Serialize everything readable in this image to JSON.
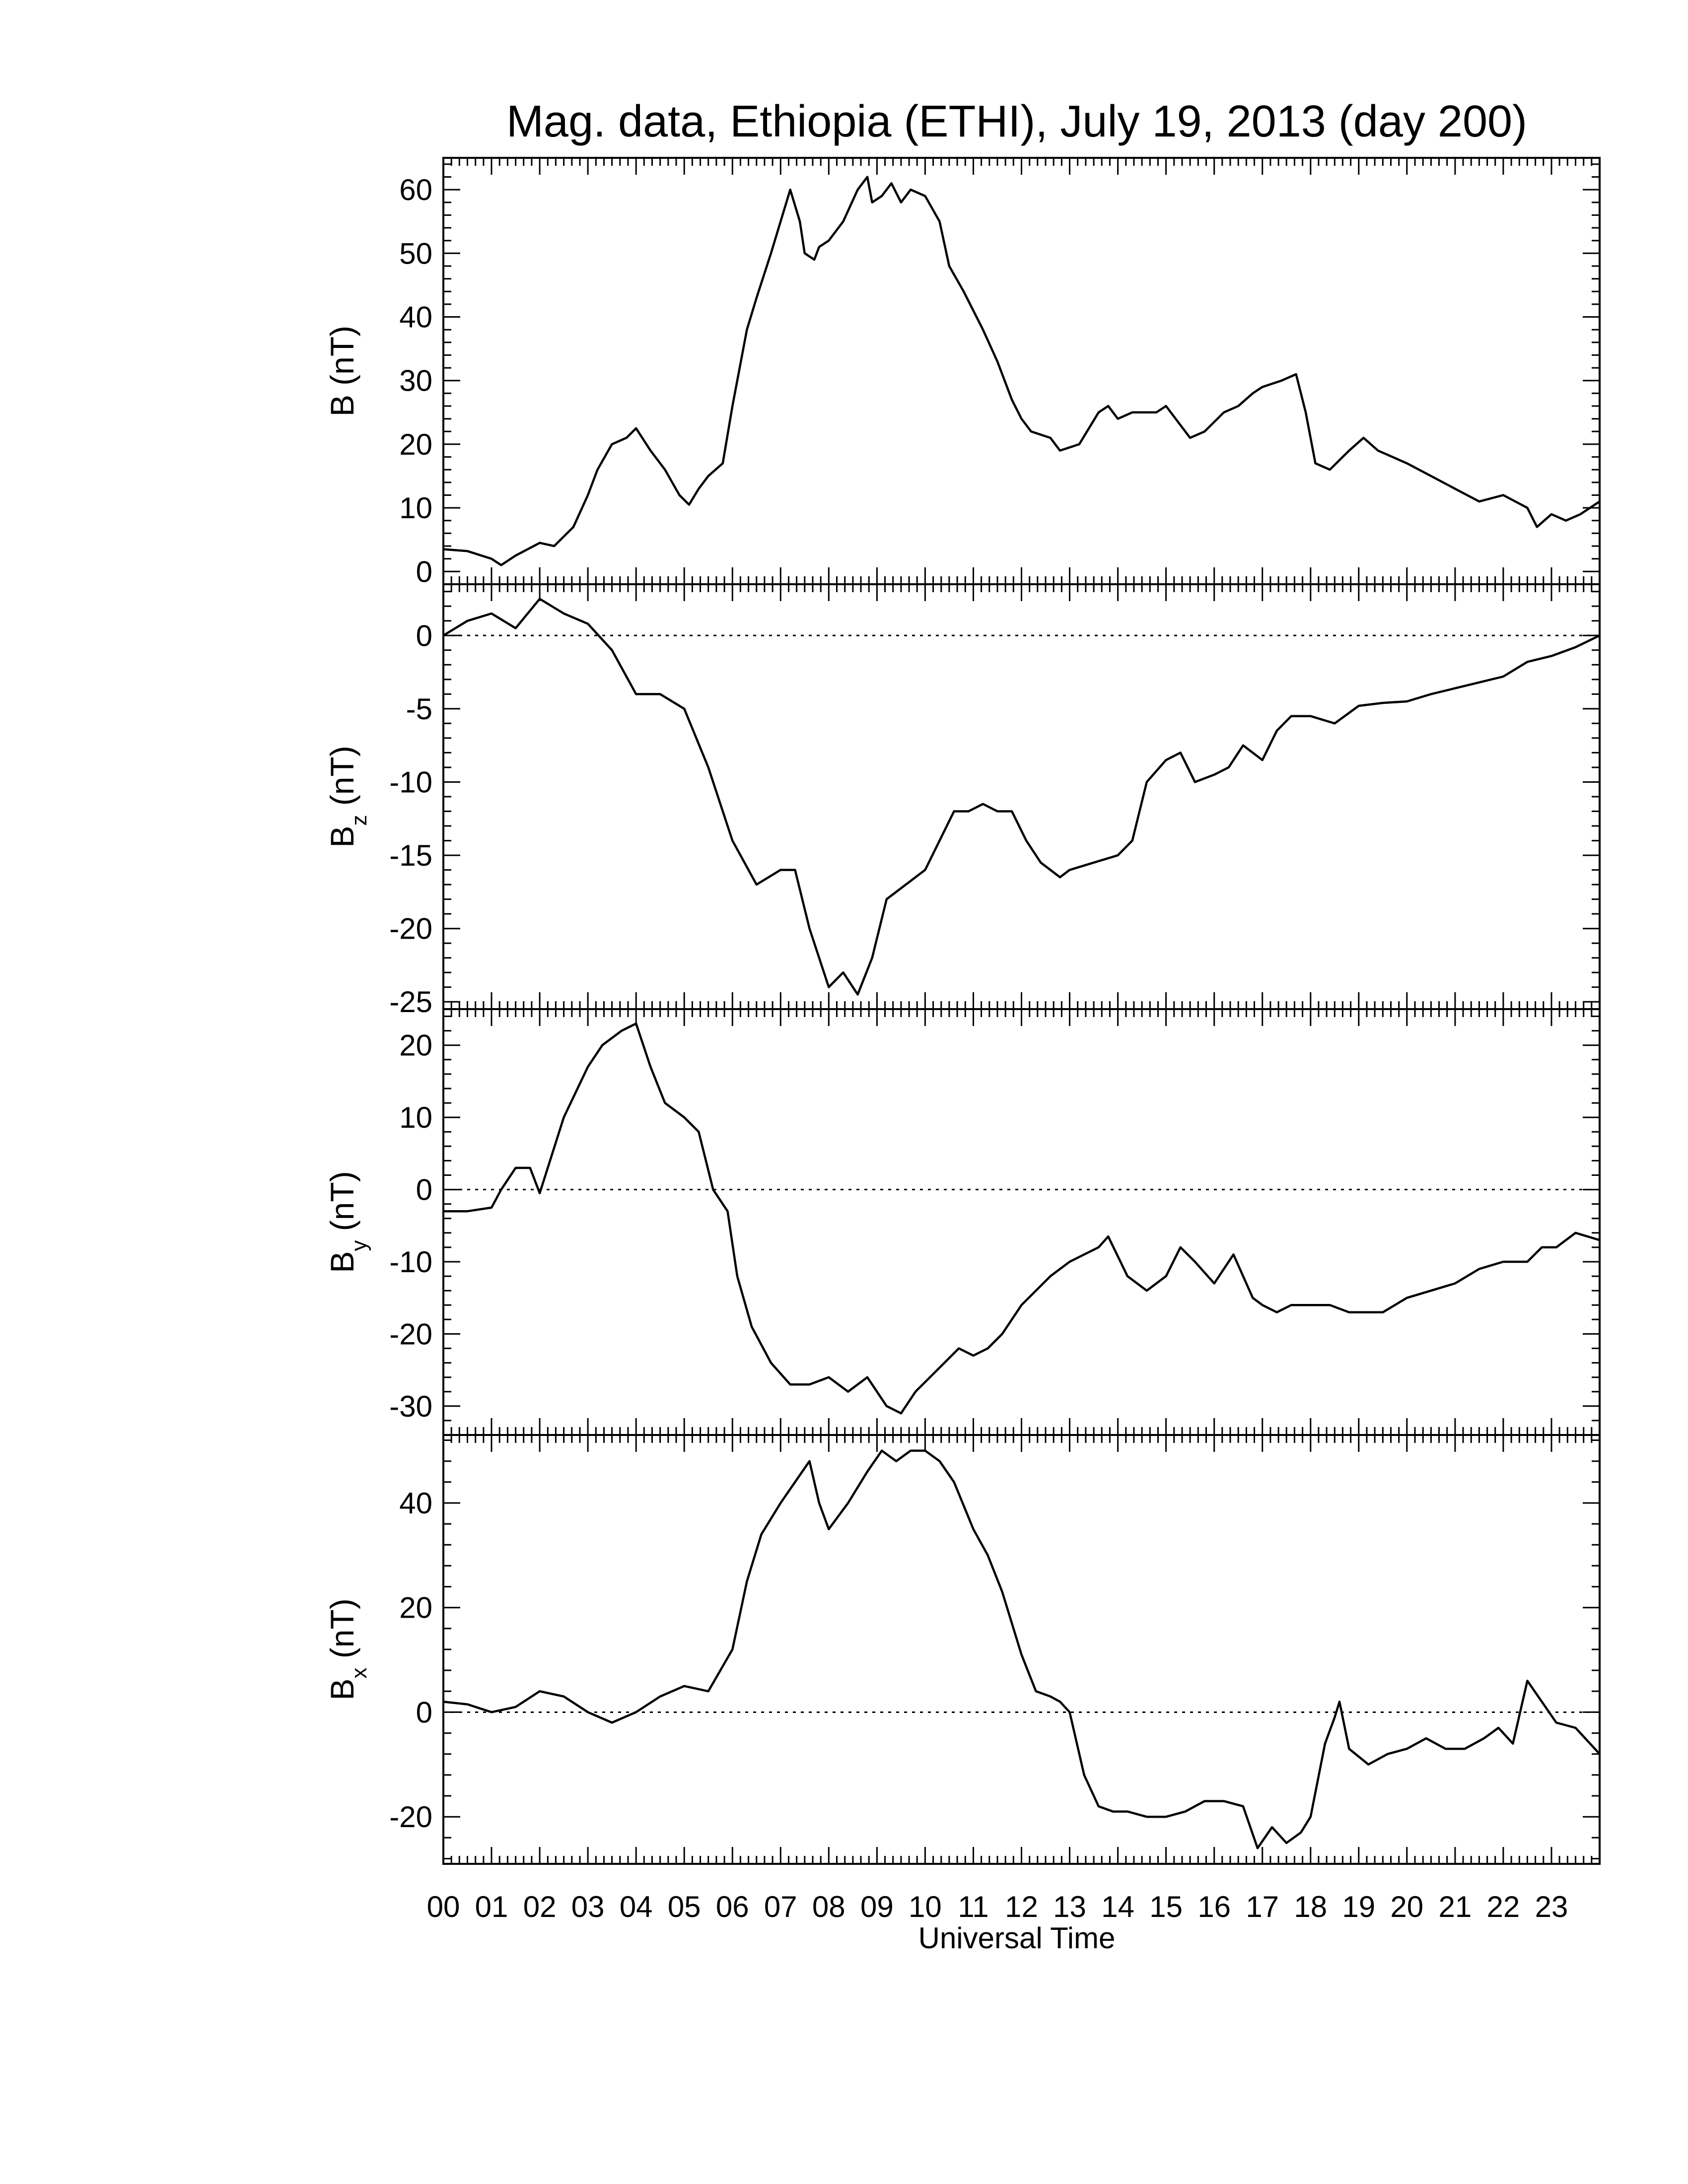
{
  "title": "Mag. data, Ethiopia (ETHI), July 19, 2013 (day 200)",
  "xlabel": "Universal Time",
  "x_tick_labels": [
    "00",
    "01",
    "02",
    "03",
    "04",
    "05",
    "06",
    "07",
    "08",
    "09",
    "10",
    "11",
    "12",
    "13",
    "14",
    "15",
    "16",
    "17",
    "18",
    "19",
    "20",
    "21",
    "22",
    "23"
  ],
  "colors": {
    "line": "#000000",
    "background": "#ffffff"
  },
  "chart_data": [
    {
      "type": "line",
      "ylabel": "B (nT)",
      "ylim": [
        -2,
        65
      ],
      "yticks": [
        0,
        10,
        20,
        30,
        40,
        50,
        60
      ],
      "zero_line": false,
      "x": [
        0,
        0.5,
        1,
        1.2,
        1.5,
        2,
        2.3,
        2.7,
        3,
        3.2,
        3.5,
        3.8,
        4,
        4.3,
        4.6,
        4.9,
        5.1,
        5.3,
        5.5,
        5.8,
        6,
        6.3,
        6.5,
        6.8,
        7,
        7.2,
        7.4,
        7.5,
        7.7,
        7.8,
        8,
        8.3,
        8.6,
        8.8,
        8.9,
        9.1,
        9.3,
        9.5,
        9.7,
        10,
        10.3,
        10.5,
        10.8,
        11.2,
        11.5,
        11.8,
        12,
        12.2,
        12.6,
        12.8,
        13.2,
        13.6,
        13.8,
        14,
        14.3,
        14.8,
        15,
        15.2,
        15.5,
        15.8,
        16.2,
        16.5,
        16.8,
        17,
        17.4,
        17.7,
        17.9,
        18.1,
        18.4,
        18.8,
        19.1,
        19.4,
        19.7,
        20,
        20.5,
        21,
        21.5,
        22,
        22.5,
        22.7,
        23,
        23.3,
        23.6,
        24
      ],
      "y": [
        3.5,
        3.2,
        2,
        1,
        2.5,
        4.5,
        4,
        7,
        12,
        16,
        20,
        21,
        22.5,
        19,
        16,
        12,
        10.5,
        13,
        15,
        17,
        26,
        38,
        43,
        50,
        55,
        60,
        55,
        50,
        49,
        51,
        52,
        55,
        60,
        62,
        58,
        59,
        61,
        58,
        60,
        59,
        55,
        48,
        44,
        38,
        33,
        27,
        24,
        22,
        21,
        19,
        20,
        25,
        26,
        24,
        25,
        25,
        26,
        24,
        21,
        22,
        25,
        26,
        28,
        29,
        30,
        31,
        25,
        17,
        16,
        19,
        21,
        19,
        18,
        17,
        15,
        13,
        11,
        12,
        10,
        7,
        9,
        8,
        9,
        11
      ]
    },
    {
      "type": "line",
      "ylabel": "B z (nT)",
      "ylim": [
        -25.5,
        3.5
      ],
      "yticks": [
        0,
        -5,
        -10,
        -15,
        -20,
        -25
      ],
      "zero_line": true,
      "x": [
        0,
        0.5,
        1,
        1.5,
        2,
        2.5,
        3,
        3.5,
        4,
        4.5,
        5,
        5.5,
        6,
        6.5,
        7,
        7.3,
        7.6,
        8,
        8.3,
        8.6,
        8.9,
        9.2,
        9.6,
        10,
        10.3,
        10.6,
        10.9,
        11.2,
        11.5,
        11.8,
        12.1,
        12.4,
        12.8,
        13,
        13.5,
        14,
        14.3,
        14.6,
        15,
        15.3,
        15.6,
        16,
        16.3,
        16.6,
        17,
        17.3,
        17.6,
        18,
        18.5,
        19,
        19.5,
        20,
        20.5,
        21,
        21.5,
        22,
        22.5,
        23,
        23.5,
        24
      ],
      "y": [
        0,
        1,
        1.5,
        0.5,
        2.5,
        1.5,
        0.8,
        -1,
        -4,
        -4,
        -5,
        -9,
        -14,
        -17,
        -16,
        -16,
        -20,
        -24,
        -23,
        -24.5,
        -22,
        -18,
        -17,
        -16,
        -14,
        -12,
        -12,
        -11.5,
        -12,
        -12,
        -14,
        -15.5,
        -16.5,
        -16,
        -15.5,
        -15,
        -14,
        -10,
        -8.5,
        -8,
        -10,
        -9.5,
        -9,
        -7.5,
        -8.5,
        -6.5,
        -5.5,
        -5.5,
        -6,
        -4.8,
        -4.6,
        -4.5,
        -4,
        -3.6,
        -3.2,
        -2.8,
        -1.8,
        -1.4,
        -0.8,
        0
      ]
    },
    {
      "type": "line",
      "ylabel": "B y (nT)",
      "ylim": [
        -34,
        25
      ],
      "yticks": [
        20,
        10,
        0,
        -10,
        -20,
        -30
      ],
      "zero_line": true,
      "x": [
        0,
        0.5,
        1,
        1.2,
        1.5,
        1.8,
        2,
        2.5,
        3,
        3.3,
        3.7,
        4,
        4.3,
        4.6,
        5,
        5.3,
        5.6,
        5.9,
        6.1,
        6.4,
        6.8,
        7.2,
        7.6,
        8,
        8.4,
        8.8,
        9.2,
        9.5,
        9.8,
        10.1,
        10.4,
        10.7,
        11,
        11.3,
        11.6,
        12,
        12.3,
        12.6,
        13,
        13.3,
        13.6,
        13.8,
        14.2,
        14.6,
        15,
        15.3,
        15.6,
        16,
        16.4,
        16.8,
        17,
        17.3,
        17.6,
        18,
        18.4,
        18.8,
        19.1,
        19.5,
        20,
        20.5,
        21,
        21.5,
        22,
        22.5,
        22.8,
        23.1,
        23.5,
        24
      ],
      "y": [
        -3,
        -3,
        -2.5,
        0,
        3,
        3,
        -0.5,
        10,
        17,
        20,
        22,
        23,
        17,
        12,
        10,
        8,
        0,
        -3,
        -12,
        -19,
        -24,
        -27,
        -27,
        -26,
        -28,
        -26,
        -30,
        -31,
        -28,
        -26,
        -24,
        -22,
        -23,
        -22,
        -20,
        -16,
        -14,
        -12,
        -10,
        -9,
        -8,
        -6.5,
        -12,
        -14,
        -12,
        -8,
        -10,
        -13,
        -9,
        -15,
        -16,
        -17,
        -16,
        -16,
        -16,
        -17,
        -17,
        -17,
        -15,
        -14,
        -13,
        -11,
        -10,
        -10,
        -8,
        -8,
        -6,
        -7
      ]
    },
    {
      "type": "line",
      "ylabel": "B x (nT)",
      "ylim": [
        -29,
        53
      ],
      "yticks": [
        40,
        20,
        0,
        -20
      ],
      "zero_line": true,
      "x": [
        0,
        0.5,
        1,
        1.5,
        2,
        2.5,
        3,
        3.5,
        4,
        4.5,
        5,
        5.5,
        6,
        6.3,
        6.6,
        7,
        7.3,
        7.6,
        7.8,
        8,
        8.4,
        8.8,
        9.1,
        9.4,
        9.7,
        10,
        10.3,
        10.6,
        11,
        11.3,
        11.6,
        12,
        12.3,
        12.6,
        12.8,
        13,
        13.3,
        13.6,
        13.9,
        14.2,
        14.6,
        15,
        15.4,
        15.8,
        16.2,
        16.6,
        16.9,
        17.2,
        17.5,
        17.8,
        18,
        18.3,
        18.5,
        18.6,
        18.8,
        19.2,
        19.6,
        20,
        20.4,
        20.8,
        21.2,
        21.6,
        21.9,
        22.2,
        22.5,
        22.8,
        23.1,
        23.5,
        24
      ],
      "y": [
        2,
        1.5,
        0,
        1,
        4,
        3,
        0,
        -2,
        0,
        3,
        5,
        4,
        12,
        25,
        34,
        40,
        44,
        48,
        40,
        35,
        40,
        46,
        50,
        48,
        50,
        50,
        48,
        44,
        35,
        30,
        23,
        11,
        4,
        3,
        2,
        0,
        -12,
        -18,
        -19,
        -19,
        -20,
        -20,
        -19,
        -17,
        -17,
        -18,
        -26,
        -22,
        -25,
        -23,
        -20,
        -6,
        -1,
        2,
        -7,
        -10,
        -8,
        -7,
        -5,
        -7,
        -7,
        -5,
        -3,
        -6,
        6,
        2,
        -2,
        -3,
        -8
      ]
    }
  ]
}
